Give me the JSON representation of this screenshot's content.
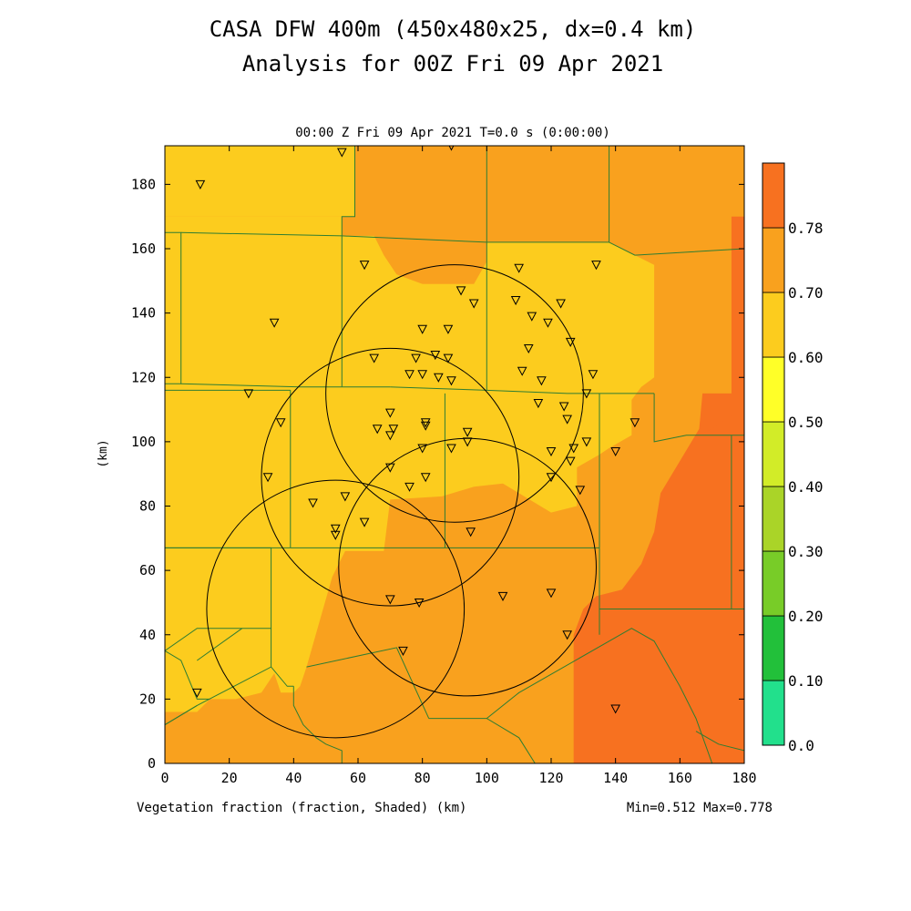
{
  "header": {
    "title_line1": "CASA DFW 400m (450x480x25, dx=0.4 km)",
    "title_line2": "Analysis for 00Z Fri 09 Apr 2021",
    "subtitle": "00:00 Z Fri 09 Apr 2021   T=0.0 s (0:00:00)"
  },
  "footer": {
    "variable_label": "Vegetation fraction (fraction, Shaded)  (km)",
    "minmax": "Min=0.512 Max=0.778"
  },
  "chart_data": {
    "type": "heatmap",
    "title": "CASA DFW 400m (450x480x25, dx=0.4 km)",
    "ylabel": "(km)",
    "xlabel": "(km)",
    "xlim": [
      0,
      180
    ],
    "ylim": [
      0,
      192
    ],
    "x_ticks": [
      0,
      20,
      40,
      60,
      80,
      100,
      120,
      140,
      160,
      180
    ],
    "y_ticks": [
      0,
      20,
      40,
      60,
      80,
      100,
      120,
      140,
      160,
      180
    ],
    "colorbar": {
      "levels": [
        "0.0",
        "0.10",
        "0.20",
        "0.30",
        "0.40",
        "0.50",
        "0.60",
        "0.70",
        "0.78"
      ],
      "colors": [
        "#22e08c",
        "#22c03a",
        "#78cc28",
        "#aad428",
        "#d2ec28",
        "#ffff28",
        "#fccc1e",
        "#f9a11e",
        "#f77120"
      ]
    },
    "field_regions": [
      {
        "level": "0.60-0.70",
        "polygon": [
          [
            0,
            192
          ],
          [
            180,
            192
          ],
          [
            180,
            0
          ],
          [
            0,
            0
          ]
        ]
      },
      {
        "level": "0.50-0.60",
        "polygon": [
          [
            0,
            192
          ],
          [
            59,
            192
          ],
          [
            59,
            170
          ],
          [
            0,
            170
          ]
        ]
      },
      {
        "level": "0.50-0.60",
        "polygon": [
          [
            0,
            170
          ],
          [
            55,
            170
          ],
          [
            55,
            164
          ],
          [
            65,
            164
          ],
          [
            68,
            158
          ],
          [
            72,
            152
          ],
          [
            80,
            149
          ],
          [
            96,
            149
          ],
          [
            100,
            156
          ],
          [
            100,
            162
          ],
          [
            138,
            162
          ],
          [
            146,
            158
          ],
          [
            152,
            155
          ],
          [
            152,
            120
          ],
          [
            148,
            117
          ],
          [
            145,
            113
          ],
          [
            145,
            102
          ],
          [
            138,
            98
          ],
          [
            135,
            96
          ],
          [
            128,
            92
          ],
          [
            128,
            80
          ],
          [
            120,
            78
          ],
          [
            110,
            84
          ],
          [
            105,
            87
          ],
          [
            96,
            86
          ],
          [
            86,
            83
          ],
          [
            70,
            82
          ],
          [
            68,
            66
          ],
          [
            56,
            66
          ],
          [
            52,
            58
          ],
          [
            48,
            44
          ],
          [
            44,
            30
          ],
          [
            42,
            24
          ],
          [
            40,
            22
          ],
          [
            36,
            22
          ],
          [
            34,
            28
          ],
          [
            30,
            22
          ],
          [
            22,
            20
          ],
          [
            14,
            20
          ],
          [
            10,
            16
          ],
          [
            0,
            16
          ]
        ]
      },
      {
        "level": "0.70-0.78",
        "polygon": [
          [
            167,
            115
          ],
          [
            180,
            115
          ],
          [
            180,
            0
          ],
          [
            127,
            0
          ],
          [
            127,
            40
          ],
          [
            130,
            48
          ],
          [
            134,
            52
          ],
          [
            142,
            54
          ],
          [
            148,
            62
          ],
          [
            152,
            72
          ],
          [
            154,
            84
          ],
          [
            160,
            94
          ],
          [
            166,
            104
          ]
        ]
      },
      {
        "level": "0.70-0.78",
        "polygon": [
          [
            166,
            102
          ],
          [
            180,
            102
          ],
          [
            180,
            170
          ],
          [
            176,
            170
          ],
          [
            176,
            108
          ],
          [
            170,
            104
          ]
        ]
      }
    ],
    "radar_rings": [
      {
        "center": [
          90,
          115
        ],
        "radius_km": 40
      },
      {
        "center": [
          70,
          89
        ],
        "radius_km": 40
      },
      {
        "center": [
          94,
          61
        ],
        "radius_km": 40
      },
      {
        "center": [
          53,
          48
        ],
        "radius_km": 40
      }
    ],
    "stations": [
      [
        55,
        190
      ],
      [
        89,
        192
      ],
      [
        11,
        180
      ],
      [
        62,
        155
      ],
      [
        110,
        154
      ],
      [
        134,
        155
      ],
      [
        92,
        147
      ],
      [
        96,
        143
      ],
      [
        109,
        144
      ],
      [
        114,
        139
      ],
      [
        123,
        143
      ],
      [
        80,
        135
      ],
      [
        88,
        135
      ],
      [
        34,
        137
      ],
      [
        119,
        137
      ],
      [
        126,
        131
      ],
      [
        65,
        126
      ],
      [
        78,
        126
      ],
      [
        84,
        127
      ],
      [
        88,
        126
      ],
      [
        113,
        129
      ],
      [
        76,
        121
      ],
      [
        80,
        121
      ],
      [
        85,
        120
      ],
      [
        89,
        119
      ],
      [
        111,
        122
      ],
      [
        117,
        119
      ],
      [
        133,
        121
      ],
      [
        26,
        115
      ],
      [
        131,
        115
      ],
      [
        36,
        106
      ],
      [
        70,
        109
      ],
      [
        66,
        104
      ],
      [
        70,
        102
      ],
      [
        71,
        104
      ],
      [
        81,
        106
      ],
      [
        81,
        105
      ],
      [
        94,
        103
      ],
      [
        116,
        112
      ],
      [
        124,
        111
      ],
      [
        125,
        107
      ],
      [
        146,
        106
      ],
      [
        89,
        98
      ],
      [
        94,
        100
      ],
      [
        80,
        98
      ],
      [
        131,
        100
      ],
      [
        120,
        97
      ],
      [
        127,
        98
      ],
      [
        140,
        97
      ],
      [
        32,
        89
      ],
      [
        70,
        92
      ],
      [
        76,
        86
      ],
      [
        81,
        89
      ],
      [
        120,
        89
      ],
      [
        129,
        85
      ],
      [
        126,
        94
      ],
      [
        56,
        83
      ],
      [
        46,
        81
      ],
      [
        62,
        75
      ],
      [
        53,
        73
      ],
      [
        53,
        71
      ],
      [
        95,
        72
      ],
      [
        70,
        51
      ],
      [
        79,
        50
      ],
      [
        105,
        52
      ],
      [
        120,
        53
      ],
      [
        125,
        40
      ],
      [
        74,
        35
      ],
      [
        10,
        22
      ],
      [
        140,
        17
      ]
    ],
    "county_lines": [
      [
        [
          0,
          165
        ],
        [
          5,
          165
        ],
        [
          5,
          118
        ],
        [
          0,
          118
        ]
      ],
      [
        [
          5,
          165
        ],
        [
          55,
          164
        ],
        [
          55,
          170
        ],
        [
          59,
          170
        ],
        [
          59,
          192
        ]
      ],
      [
        [
          55,
          164
        ],
        [
          100,
          162
        ]
      ],
      [
        [
          100,
          162
        ],
        [
          100,
          192
        ]
      ],
      [
        [
          100,
          162
        ],
        [
          138,
          162
        ]
      ],
      [
        [
          138,
          162
        ],
        [
          146,
          158
        ],
        [
          180,
          160
        ]
      ],
      [
        [
          138,
          162
        ],
        [
          138,
          192
        ]
      ],
      [
        [
          5,
          118
        ],
        [
          42,
          117
        ],
        [
          55,
          117
        ]
      ],
      [
        [
          55,
          164
        ],
        [
          55,
          117
        ]
      ],
      [
        [
          55,
          117
        ],
        [
          70,
          117
        ]
      ],
      [
        [
          70,
          117
        ],
        [
          100,
          116
        ],
        [
          100,
          162
        ]
      ],
      [
        [
          100,
          116
        ],
        [
          125,
          115
        ],
        [
          152,
          115
        ]
      ],
      [
        [
          152,
          115
        ],
        [
          152,
          100
        ],
        [
          162,
          102
        ],
        [
          180,
          102
        ]
      ],
      [
        [
          0,
          116
        ],
        [
          39,
          116
        ]
      ],
      [
        [
          39,
          116
        ],
        [
          39,
          67
        ]
      ],
      [
        [
          0,
          67
        ],
        [
          39,
          67
        ]
      ],
      [
        [
          39,
          67
        ],
        [
          87,
          67
        ]
      ],
      [
        [
          87,
          67
        ],
        [
          87,
          115
        ]
      ],
      [
        [
          87,
          67
        ],
        [
          135,
          67
        ]
      ],
      [
        [
          135,
          67
        ],
        [
          135,
          115
        ]
      ],
      [
        [
          135,
          67
        ],
        [
          135,
          40
        ]
      ],
      [
        [
          176,
          102
        ],
        [
          176,
          48
        ]
      ],
      [
        [
          135,
          48
        ],
        [
          170,
          48
        ],
        [
          180,
          48
        ]
      ],
      [
        [
          0,
          67
        ],
        [
          33,
          67
        ],
        [
          33,
          30
        ]
      ],
      [
        [
          0,
          35
        ],
        [
          10,
          42
        ],
        [
          24,
          42
        ],
        [
          33,
          42
        ]
      ],
      [
        [
          24,
          42
        ],
        [
          10,
          32
        ]
      ],
      [
        [
          0,
          12
        ],
        [
          10,
          18
        ],
        [
          33,
          30
        ],
        [
          38,
          24
        ],
        [
          40,
          24
        ]
      ],
      [
        [
          10,
          18
        ],
        [
          0,
          12
        ]
      ],
      [
        [
          40,
          24
        ],
        [
          40,
          18
        ],
        [
          43,
          12
        ],
        [
          47,
          8
        ],
        [
          50,
          6
        ],
        [
          55,
          4
        ],
        [
          55,
          0
        ]
      ],
      [
        [
          44,
          30
        ],
        [
          72,
          36
        ],
        [
          82,
          14
        ]
      ],
      [
        [
          82,
          14
        ],
        [
          100,
          14
        ],
        [
          110,
          8
        ],
        [
          115,
          0
        ]
      ],
      [
        [
          100,
          14
        ],
        [
          110,
          22
        ],
        [
          138,
          38
        ],
        [
          145,
          42
        ],
        [
          152,
          38
        ],
        [
          160,
          24
        ],
        [
          165,
          14
        ],
        [
          170,
          0
        ]
      ],
      [
        [
          165,
          10
        ],
        [
          172,
          6
        ],
        [
          180,
          4
        ]
      ],
      [
        [
          0,
          35
        ],
        [
          5,
          32
        ],
        [
          10,
          20
        ],
        [
          14,
          20
        ]
      ]
    ]
  }
}
